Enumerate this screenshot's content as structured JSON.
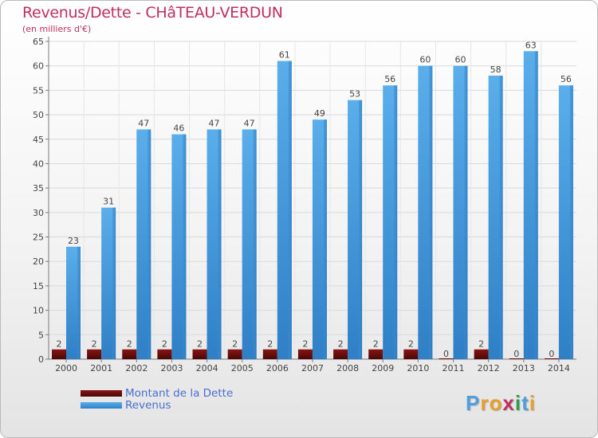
{
  "chart_data": {
    "type": "bar",
    "title": "Revenus/Dette - CHâTEAU-VERDUN",
    "subtitle": "(en milliers d'€)",
    "categories": [
      "2000",
      "2001",
      "2002",
      "2003",
      "2004",
      "2005",
      "2006",
      "2007",
      "2008",
      "2009",
      "2010",
      "2011",
      "2012",
      "2013",
      "2014"
    ],
    "series": [
      {
        "name": "Montant de la Dette",
        "color": "#6b0d0d",
        "values": [
          2,
          2,
          2,
          2,
          2,
          2,
          2,
          2,
          2,
          2,
          2,
          0,
          2,
          0,
          0
        ]
      },
      {
        "name": "Revenus",
        "color": "#4f9fe0",
        "values": [
          23,
          31,
          47,
          46,
          47,
          47,
          61,
          49,
          53,
          56,
          60,
          60,
          58,
          63,
          56
        ]
      }
    ],
    "ylim": [
      0,
      65
    ],
    "yticks": [
      0,
      5,
      10,
      15,
      20,
      25,
      30,
      35,
      40,
      45,
      50,
      55,
      60,
      65
    ],
    "grid": true,
    "legend_position": "bottom-left",
    "xlabel": "",
    "ylabel": ""
  },
  "legend": {
    "items": [
      {
        "label": "Montant de la Dette",
        "color": "#6b0d0d"
      },
      {
        "label": "Revenus",
        "color": "#4f9fe0"
      }
    ]
  },
  "logo": {
    "letters": [
      "P",
      "r",
      "o",
      "x",
      "i",
      "t",
      "i"
    ],
    "colors": [
      "#4f9fe0",
      "#e8a02a",
      "#e8a02a",
      "#c0305e",
      "#2a9e4b",
      "#4f9fe0",
      "#e8a02a"
    ]
  }
}
